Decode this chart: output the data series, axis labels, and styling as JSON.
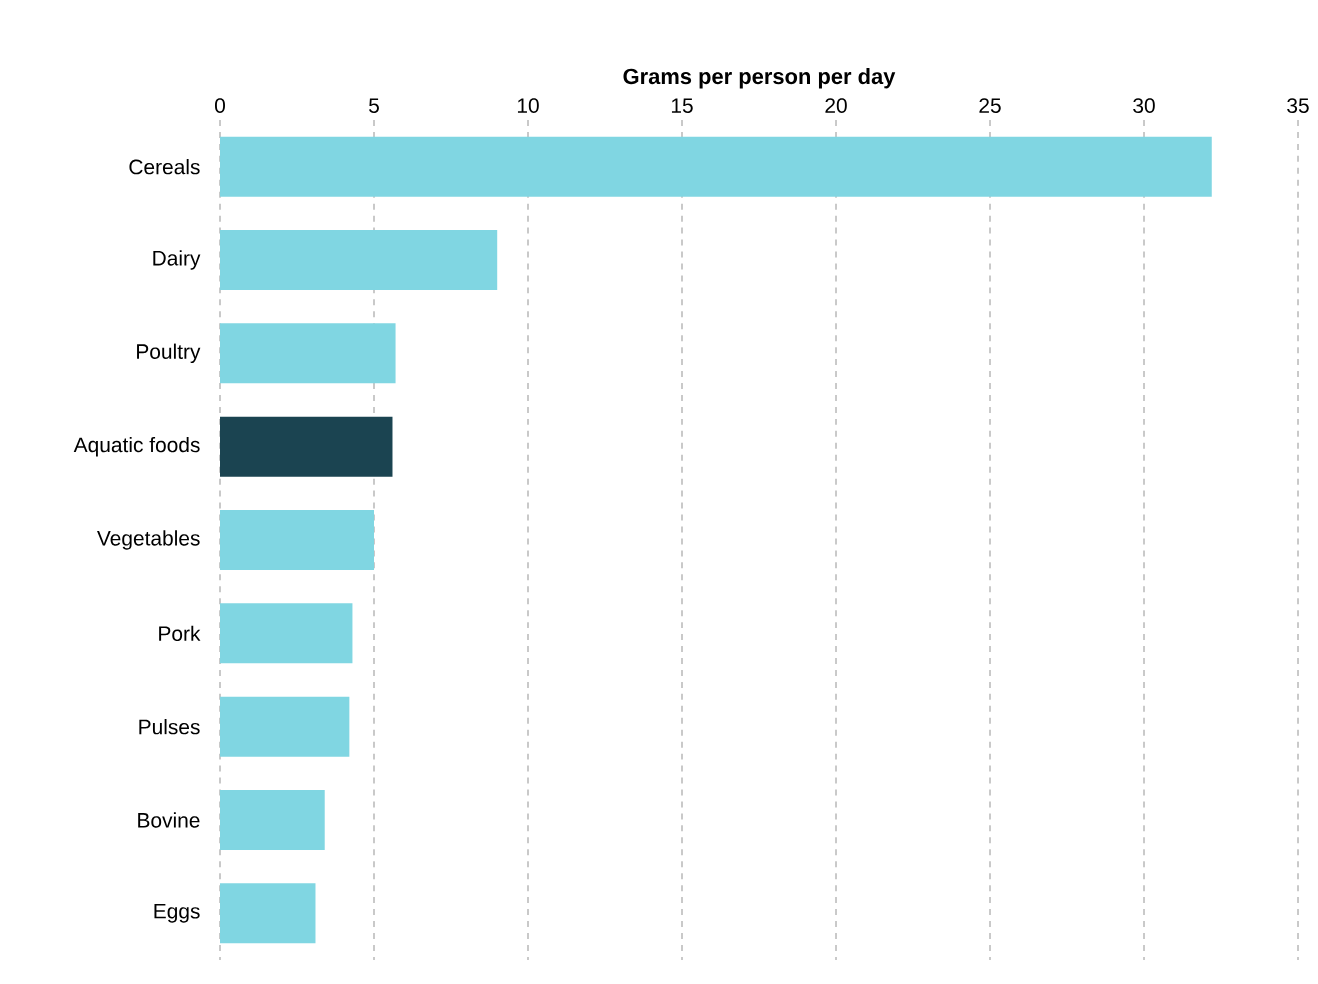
{
  "chart_data": {
    "type": "bar",
    "orientation": "horizontal",
    "xlabel": "Grams per person per day",
    "categories": [
      "Cereals",
      "Dairy",
      "Poultry",
      "Aquatic foods",
      "Vegetables",
      "Pork",
      "Pulses",
      "Bovine",
      "Eggs"
    ],
    "values": [
      32.2,
      9.0,
      5.7,
      5.6,
      5.0,
      4.3,
      4.2,
      3.4,
      3.1
    ],
    "colors": [
      "#80d6e2",
      "#80d6e2",
      "#80d6e2",
      "#1b4451",
      "#80d6e2",
      "#80d6e2",
      "#80d6e2",
      "#80d6e2",
      "#80d6e2"
    ],
    "xlim": [
      0,
      35
    ],
    "xticks": [
      0,
      5,
      10,
      15,
      20,
      25,
      30,
      35
    ],
    "grid": "x"
  }
}
